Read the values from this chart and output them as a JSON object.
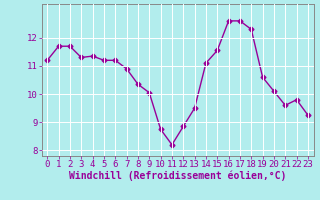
{
  "x": [
    0,
    1,
    2,
    3,
    4,
    5,
    6,
    7,
    8,
    9,
    10,
    11,
    12,
    13,
    14,
    15,
    16,
    17,
    18,
    19,
    20,
    21,
    22,
    23
  ],
  "y": [
    11.2,
    11.7,
    11.7,
    11.3,
    11.35,
    11.2,
    11.2,
    10.9,
    10.35,
    10.05,
    8.75,
    8.2,
    8.85,
    9.5,
    11.1,
    11.55,
    12.6,
    12.6,
    12.3,
    10.6,
    10.1,
    9.6,
    9.8,
    9.25
  ],
  "line_color": "#990099",
  "marker": "D",
  "markersize": 2.5,
  "linewidth": 1.0,
  "xlabel": "Windchill (Refroidissement éolien,°C)",
  "xlabel_fontsize": 7,
  "ylabel": "",
  "ylim": [
    7.8,
    13.2
  ],
  "xlim": [
    -0.5,
    23.5
  ],
  "yticks": [
    8,
    9,
    10,
    11,
    12
  ],
  "xticks": [
    0,
    1,
    2,
    3,
    4,
    5,
    6,
    7,
    8,
    9,
    10,
    11,
    12,
    13,
    14,
    15,
    16,
    17,
    18,
    19,
    20,
    21,
    22,
    23
  ],
  "background_color": "#b2eded",
  "grid_color": "#c8e8e8",
  "tick_color": "#990099",
  "tick_fontsize": 6.5,
  "spine_color": "#888888"
}
